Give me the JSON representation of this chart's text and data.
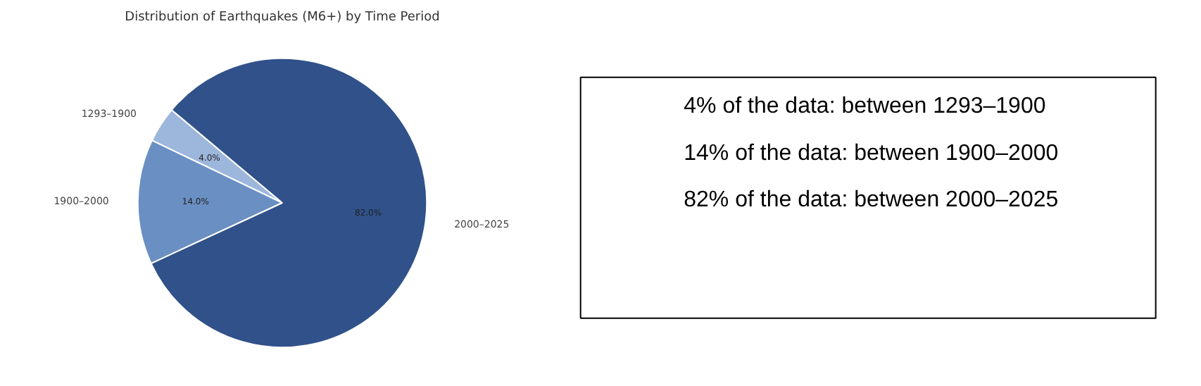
{
  "chart_data": [
    {
      "type": "pie",
      "title": "Distribution of Earthquakes (M6+) by Time Period",
      "categories": [
        "1293–1900",
        "1900–2000",
        "2000–2025"
      ],
      "values": [
        4,
        14,
        82
      ],
      "colors": [
        "#9db7dc",
        "#6a8fc2",
        "#30518a"
      ],
      "value_labels": [
        "4.0%",
        "14.0%",
        "82.0%"
      ]
    },
    {
      "type": "other",
      "annotations": [
        "4% of the data: between 1293–1900",
        "14% of the data: between 1900–2000",
        "82% of the data: between 2000–2025"
      ]
    }
  ]
}
